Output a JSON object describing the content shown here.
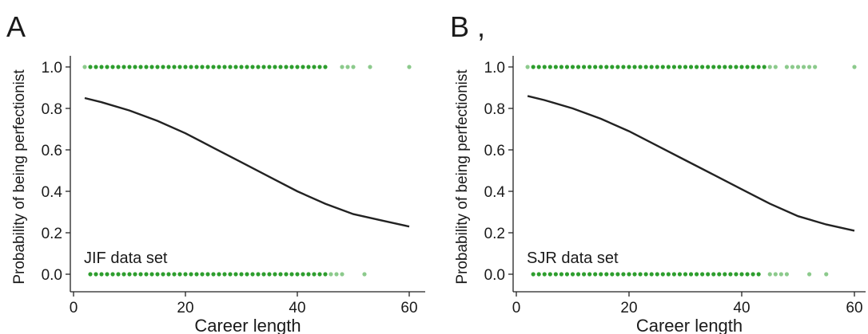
{
  "figure": {
    "panel_letters": [
      "A",
      "B ,"
    ]
  },
  "chart_data": [
    {
      "type": "scatter",
      "panel_label": "A",
      "annotation": "JIF data set",
      "xlabel": "Career length",
      "ylabel": "Probability of being perfectionist",
      "xlim": [
        0,
        62.5
      ],
      "ylim": [
        -0.03,
        1.05
      ],
      "xticks": [
        0,
        20,
        40,
        60
      ],
      "yticks": [
        0.0,
        0.2,
        0.4,
        0.6,
        0.8,
        1.0
      ],
      "ytick_labels": [
        "0.0",
        "0.2",
        "0.4",
        "0.6",
        "0.8",
        "1.0"
      ],
      "grid": false,
      "series": [
        {
          "kind": "points",
          "y": 1,
          "x": [
            2,
            3,
            4,
            5,
            6,
            7,
            8,
            9,
            10,
            11,
            12,
            13,
            14,
            15,
            16,
            17,
            18,
            19,
            20,
            21,
            22,
            23,
            24,
            25,
            26,
            27,
            28,
            29,
            30,
            31,
            32,
            33,
            34,
            35,
            36,
            37,
            38,
            39,
            40,
            41,
            42,
            43,
            44,
            45,
            48,
            49,
            50,
            53,
            60
          ],
          "color": "#2e9e2e"
        },
        {
          "kind": "points",
          "y": 0,
          "x": [
            3,
            4,
            5,
            6,
            7,
            8,
            9,
            10,
            11,
            12,
            13,
            14,
            15,
            16,
            17,
            18,
            19,
            20,
            21,
            22,
            23,
            24,
            25,
            26,
            27,
            28,
            29,
            30,
            31,
            32,
            33,
            34,
            35,
            36,
            37,
            38,
            39,
            40,
            41,
            42,
            43,
            44,
            45,
            46,
            47,
            48,
            52
          ],
          "color": "#2e9e2e"
        },
        {
          "kind": "curve",
          "x": [
            2,
            5,
            10,
            15,
            20,
            25,
            30,
            35,
            40,
            45,
            50,
            55,
            60
          ],
          "y": [
            0.85,
            0.83,
            0.79,
            0.74,
            0.68,
            0.61,
            0.54,
            0.47,
            0.4,
            0.34,
            0.29,
            0.26,
            0.23
          ],
          "color": "#222222"
        }
      ]
    },
    {
      "type": "scatter",
      "panel_label": "B",
      "annotation": "SJR data set",
      "xlabel": "Career length",
      "ylabel": "Probability of being perfectionist",
      "xlim": [
        0,
        62.5
      ],
      "ylim": [
        -0.03,
        1.05
      ],
      "xticks": [
        0,
        20,
        40,
        60
      ],
      "yticks": [
        0.0,
        0.2,
        0.4,
        0.6,
        0.8,
        1.0
      ],
      "ytick_labels": [
        "0.0",
        "0.2",
        "0.4",
        "0.6",
        "0.8",
        "1.0"
      ],
      "grid": false,
      "series": [
        {
          "kind": "points",
          "y": 1,
          "x": [
            2,
            3,
            4,
            5,
            6,
            7,
            8,
            9,
            10,
            11,
            12,
            13,
            14,
            15,
            16,
            17,
            18,
            19,
            20,
            21,
            22,
            23,
            24,
            25,
            26,
            27,
            28,
            29,
            30,
            31,
            32,
            33,
            34,
            35,
            36,
            37,
            38,
            39,
            40,
            41,
            42,
            43,
            44,
            45,
            46,
            48,
            49,
            50,
            51,
            52,
            53,
            60
          ],
          "color": "#2e9e2e"
        },
        {
          "kind": "points",
          "y": 0,
          "x": [
            3,
            4,
            5,
            6,
            7,
            8,
            9,
            10,
            11,
            12,
            13,
            14,
            15,
            16,
            17,
            18,
            19,
            20,
            21,
            22,
            23,
            24,
            25,
            26,
            27,
            28,
            29,
            30,
            31,
            32,
            33,
            34,
            35,
            36,
            37,
            38,
            39,
            40,
            41,
            42,
            43,
            45,
            46,
            47,
            48,
            52,
            55
          ],
          "color": "#2e9e2e"
        },
        {
          "kind": "curve",
          "x": [
            2,
            5,
            10,
            15,
            20,
            25,
            30,
            35,
            40,
            45,
            50,
            55,
            60
          ],
          "y": [
            0.86,
            0.84,
            0.8,
            0.75,
            0.69,
            0.62,
            0.55,
            0.48,
            0.41,
            0.34,
            0.28,
            0.24,
            0.21
          ],
          "color": "#222222"
        }
      ]
    }
  ]
}
